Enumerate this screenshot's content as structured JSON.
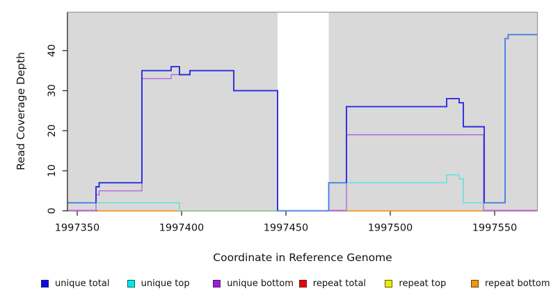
{
  "chart_data": {
    "type": "line",
    "title": "",
    "xlabel": "Coordinate in Reference Genome",
    "ylabel": "Read Coverage Depth",
    "x_ticks": [
      1997350,
      1997400,
      1997450,
      1997500,
      1997550
    ],
    "y_ticks": [
      0,
      10,
      20,
      30,
      40
    ],
    "xlim": [
      1997345.5,
      1997570.5
    ],
    "ylim": [
      0,
      49.6
    ],
    "grid": false,
    "legend_position": "bottom",
    "background_color": "#ffffff",
    "shaded_region_color": "#d9d9d9",
    "border_color": "#9b9b9b",
    "axis_color": "#262626",
    "shaded_regions": [
      {
        "from": 1997345.5,
        "to": 1997446,
        "note": "covered-region-left"
      },
      {
        "from": 1997470.5,
        "to": 1997570.5,
        "note": "covered-region-right"
      }
    ],
    "legend": [
      {
        "label": "unique total",
        "color": "#0a0aee"
      },
      {
        "label": "unique top",
        "color": "#00e8e8"
      },
      {
        "label": "unique bottom",
        "color": "#a01be0"
      },
      {
        "label": "repeat total",
        "color": "#ee0000"
      },
      {
        "label": "repeat top",
        "color": "#eded00"
      },
      {
        "label": "repeat bottom",
        "color": "#ee9902"
      }
    ],
    "series": [
      {
        "name": "zero-overlap-line",
        "color": "#7cc87c",
        "width": 1.4,
        "points": [
          [
            1997399,
            0
          ],
          [
            1997446,
            0
          ]
        ]
      },
      {
        "name": "repeat-total-segment-1",
        "color": "#d05f9b",
        "width": 1.4,
        "points": [
          [
            1997345.5,
            0.1
          ],
          [
            1997359.7,
            0.1
          ]
        ]
      },
      {
        "name": "repeat-total-segment-2",
        "color": "#d05f9b",
        "width": 1.4,
        "points": [
          [
            1997470.5,
            0.1
          ],
          [
            1997479,
            0.1
          ]
        ]
      },
      {
        "name": "repeat-total-segment-3",
        "color": "#d05f9b",
        "width": 1.4,
        "points": [
          [
            1997545,
            0.1
          ],
          [
            1997570.5,
            0.1
          ]
        ]
      },
      {
        "name": "repeat-bottom-segment-1",
        "color": "#f59300",
        "width": 1.5,
        "points": [
          [
            1997359.7,
            0
          ],
          [
            1997399,
            0
          ]
        ]
      },
      {
        "name": "repeat-bottom-segment-2",
        "color": "#f59300",
        "width": 1.5,
        "points": [
          [
            1997479,
            0
          ],
          [
            1997544.7,
            0
          ]
        ]
      },
      {
        "name": "unique-top-segment-1",
        "color": "#63e0e0",
        "width": 1.5,
        "points": [
          [
            1997345.5,
            2
          ],
          [
            1997399,
            2
          ],
          [
            1997399,
            0
          ]
        ]
      },
      {
        "name": "unique-top-segment-2",
        "color": "#63e0e0",
        "width": 1.5,
        "points": [
          [
            1997470.5,
            7
          ],
          [
            1997527,
            7
          ],
          [
            1997527,
            9
          ],
          [
            1997533,
            9
          ],
          [
            1997533,
            8
          ],
          [
            1997535,
            8
          ],
          [
            1997535,
            2
          ],
          [
            1997555,
            2
          ],
          [
            1997555,
            43
          ],
          [
            1997556.5,
            43
          ],
          [
            1997556.5,
            44
          ],
          [
            1997570.5,
            44
          ]
        ]
      },
      {
        "name": "unique-bottom",
        "color": "#b268d9",
        "width": 1.4,
        "points": [
          [
            1997345.5,
            0
          ],
          [
            1997359,
            0
          ],
          [
            1997359,
            4
          ],
          [
            1997360.5,
            4
          ],
          [
            1997360.5,
            5
          ],
          [
            1997381,
            5
          ],
          [
            1997381,
            33
          ],
          [
            1997395,
            33
          ],
          [
            1997395,
            34
          ],
          [
            1997404,
            34
          ],
          [
            1997404,
            35
          ],
          [
            1997425,
            35
          ],
          [
            1997425,
            30
          ],
          [
            1997446,
            30
          ],
          [
            1997446,
            0
          ],
          [
            1997479,
            0
          ],
          [
            1997479,
            19
          ],
          [
            1997544.7,
            19
          ],
          [
            1997544.7,
            0
          ],
          [
            1997570.5,
            0
          ]
        ]
      },
      {
        "name": "unique-total-segment-1",
        "color": "#4d7de8",
        "width": 1.9,
        "points": [
          [
            1997345.5,
            2
          ],
          [
            1997359,
            2
          ]
        ]
      },
      {
        "name": "unique-total-segment-2",
        "color": "#2b2be0",
        "width": 1.9,
        "points": [
          [
            1997359,
            2
          ],
          [
            1997359,
            6
          ],
          [
            1997360.5,
            6
          ],
          [
            1997360.5,
            7
          ],
          [
            1997381,
            7
          ],
          [
            1997381,
            35
          ],
          [
            1997395,
            35
          ],
          [
            1997395,
            36
          ],
          [
            1997399,
            36
          ],
          [
            1997399,
            34
          ],
          [
            1997404,
            34
          ],
          [
            1997404,
            35
          ],
          [
            1997425,
            35
          ],
          [
            1997425,
            30
          ],
          [
            1997446,
            30
          ],
          [
            1997446,
            0
          ]
        ]
      },
      {
        "name": "unique-total-segment-3",
        "color": "#4d7de8",
        "width": 1.9,
        "points": [
          [
            1997446,
            0
          ],
          [
            1997470.5,
            0
          ],
          [
            1997470.5,
            7
          ],
          [
            1997479,
            7
          ]
        ]
      },
      {
        "name": "unique-total-segment-4",
        "color": "#2b2be0",
        "width": 1.9,
        "points": [
          [
            1997479,
            7
          ],
          [
            1997479,
            26
          ],
          [
            1997527,
            26
          ],
          [
            1997527,
            28
          ],
          [
            1997533,
            28
          ],
          [
            1997533,
            27
          ],
          [
            1997535,
            27
          ],
          [
            1997535,
            21
          ],
          [
            1997545,
            21
          ],
          [
            1997545,
            2
          ]
        ]
      },
      {
        "name": "unique-total-segment-5",
        "color": "#4d7de8",
        "width": 1.9,
        "points": [
          [
            1997545,
            2
          ],
          [
            1997555,
            2
          ],
          [
            1997555,
            43
          ],
          [
            1997556.5,
            43
          ],
          [
            1997556.5,
            44
          ],
          [
            1997570.5,
            44
          ]
        ]
      }
    ]
  }
}
